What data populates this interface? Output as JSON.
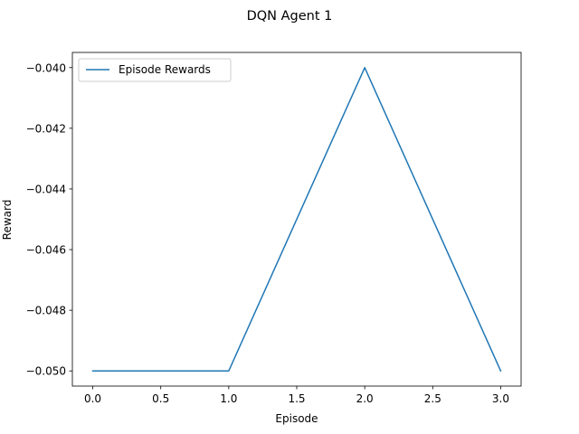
{
  "chart_data": {
    "type": "line",
    "title": "DQN Agent 1",
    "xlabel": "Episode",
    "ylabel": "Reward",
    "x": [
      0,
      1,
      2,
      3
    ],
    "series": [
      {
        "name": "Episode Rewards",
        "values": [
          -0.05,
          -0.05,
          -0.04,
          -0.05
        ],
        "color": "#1f77b4"
      }
    ],
    "xlim": [
      -0.15,
      3.15
    ],
    "ylim": [
      -0.0505,
      -0.0395
    ],
    "xticks": [
      0.0,
      0.5,
      1.0,
      1.5,
      2.0,
      2.5,
      3.0
    ],
    "xtick_labels": [
      "0.0",
      "0.5",
      "1.0",
      "1.5",
      "2.0",
      "2.5",
      "3.0"
    ],
    "yticks": [
      -0.05,
      -0.048,
      -0.046,
      -0.044,
      -0.042,
      -0.04
    ],
    "ytick_labels": [
      "−0.050",
      "−0.048",
      "−0.046",
      "−0.044",
      "−0.042",
      "−0.040"
    ],
    "grid": false,
    "legend_position": "upper-left"
  }
}
